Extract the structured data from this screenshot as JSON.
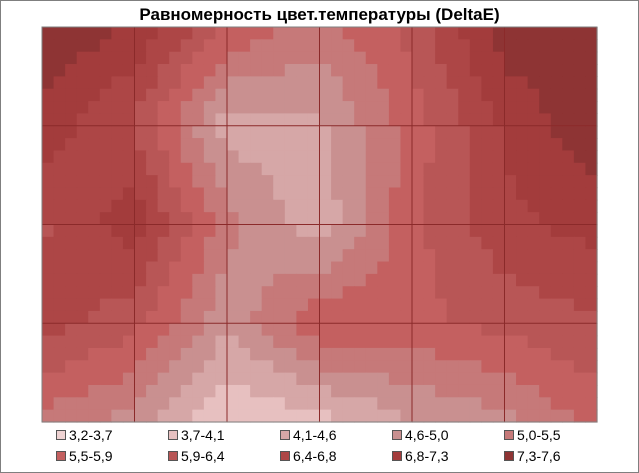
{
  "chart_data": {
    "type": "heatmap",
    "title": "Равномерность цвет.температуры (DeltaE)",
    "xlabel": "",
    "ylabel": "",
    "grid": true,
    "legend_position": "bottom",
    "grid_columns": 6,
    "grid_rows": 4,
    "values": [
      [
        7.6,
        7.1,
        5.8,
        5.2,
        6.0,
        7.4,
        7.5
      ],
      [
        7.0,
        6.2,
        4.3,
        4.4,
        5.6,
        6.8,
        7.5
      ],
      [
        6.2,
        7.0,
        5.1,
        4.2,
        5.7,
        6.6,
        6.9
      ],
      [
        6.5,
        6.0,
        4.6,
        5.8,
        5.7,
        6.0,
        6.2
      ],
      [
        5.2,
        4.8,
        3.6,
        3.9,
        4.5,
        4.8,
        5.6
      ]
    ],
    "legend": [
      {
        "label": "3,2-3,7",
        "color": "#efd3d3"
      },
      {
        "label": "3,7-4,1",
        "color": "#e7c0c0"
      },
      {
        "label": "4,1-4,6",
        "color": "#d6a7a7"
      },
      {
        "label": "4,6-5,0",
        "color": "#c99090"
      },
      {
        "label": "5,0-5,5",
        "color": "#c67979"
      },
      {
        "label": "5,5-5,9",
        "color": "#c46060"
      },
      {
        "label": "5,9-6,4",
        "color": "#b85656"
      },
      {
        "label": "6,4-6,8",
        "color": "#ad4646"
      },
      {
        "label": "6,8-7,3",
        "color": "#a33c3c"
      },
      {
        "label": "7,3-7,6",
        "color": "#8e3434"
      }
    ]
  }
}
